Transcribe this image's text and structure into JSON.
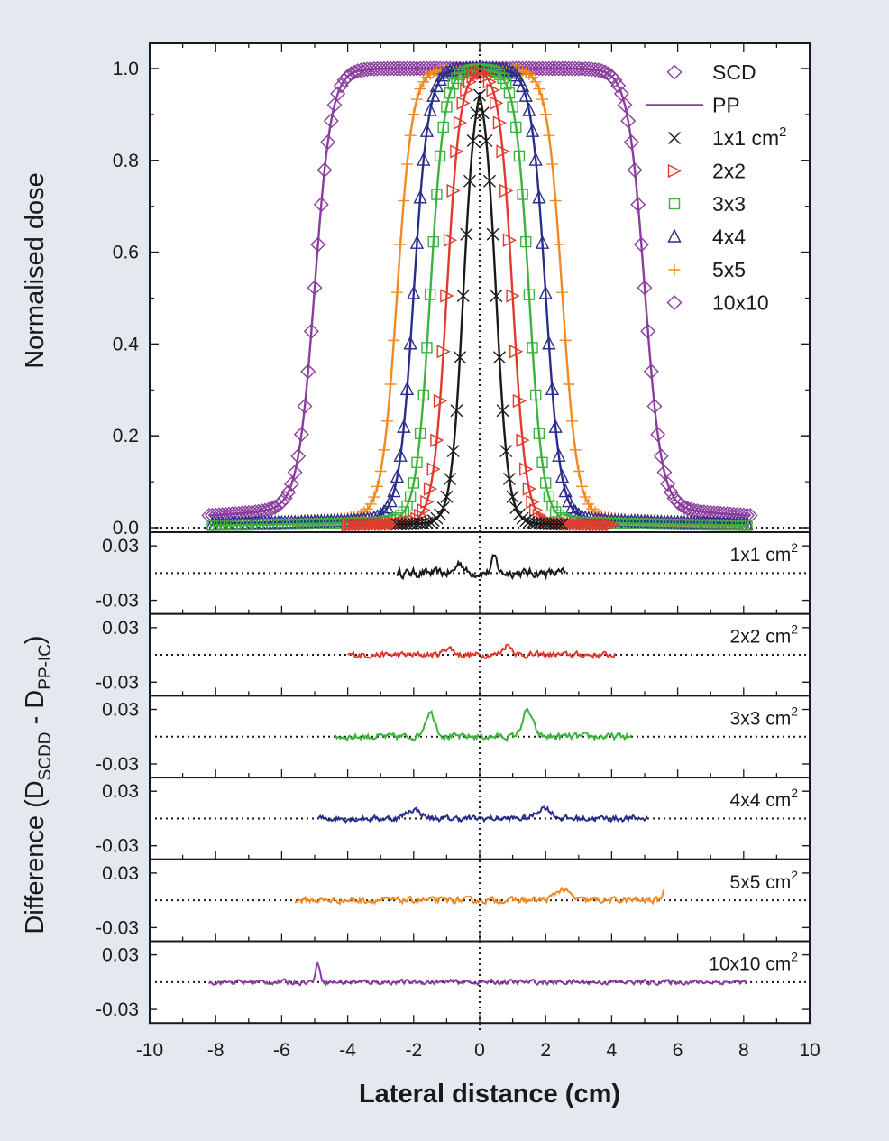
{
  "chart_data": [
    {
      "type": "line",
      "ylabel": "Normalised dose",
      "xlim": [
        -10,
        10
      ],
      "ylim": [
        0,
        1.02
      ],
      "xticks": [
        "-10",
        "-8",
        "-6",
        "-4",
        "-2",
        "0",
        "2",
        "4",
        "6",
        "8",
        "10"
      ],
      "yticks": [
        "0.0",
        "0.2",
        "0.4",
        "0.6",
        "0.8",
        "1.0"
      ],
      "legend_position": "top-right",
      "legend": [
        {
          "label": "SCD",
          "marker": "diamond",
          "color": "#8a3d9e"
        },
        {
          "label": "PP",
          "marker": "line",
          "color": "#8a3d9e"
        },
        {
          "label": "1x1 cm",
          "sup": "2",
          "marker": "x",
          "color": "#1a1a1a"
        },
        {
          "label": "2x2",
          "marker": "triangle-right",
          "color": "#e03a2f"
        },
        {
          "label": "3x3",
          "marker": "square",
          "color": "#3db23d"
        },
        {
          "label": "4x4",
          "marker": "triangle-up",
          "color": "#2b2d8c"
        },
        {
          "label": "5x5",
          "marker": "plus",
          "color": "#f08a24"
        },
        {
          "label": "10x10",
          "marker": "diamond",
          "color": "#8a3d9e"
        }
      ],
      "series": [
        {
          "field_cm": 1,
          "halfwidth_cm": 0.5,
          "penumbra_cm": 0.18,
          "tail": 0.01,
          "x_range": [
            -2.5,
            2.5
          ],
          "color": "#1a1a1a",
          "marker": "x"
        },
        {
          "field_cm": 2,
          "halfwidth_cm": 1.0,
          "penumbra_cm": 0.2,
          "tail": 0.01,
          "x_range": [
            -4.0,
            4.0
          ],
          "color": "#e03a2f",
          "marker": "triangle-right"
        },
        {
          "field_cm": 3,
          "halfwidth_cm": 1.5,
          "penumbra_cm": 0.21,
          "tail": 0.015,
          "x_range": [
            -8.1,
            8.1
          ],
          "color": "#3db23d",
          "marker": "square"
        },
        {
          "field_cm": 4,
          "halfwidth_cm": 2.0,
          "penumbra_cm": 0.22,
          "tail": 0.02,
          "x_range": [
            -8.1,
            8.1
          ],
          "color": "#2b2d8c",
          "marker": "triangle-up"
        },
        {
          "field_cm": 5,
          "halfwidth_cm": 2.5,
          "penumbra_cm": 0.23,
          "tail": 0.025,
          "x_range": [
            -5.6,
            8.1
          ],
          "color": "#f08a24",
          "marker": "plus"
        },
        {
          "field_cm": 10,
          "halfwidth_cm": 5.0,
          "penumbra_cm": 0.25,
          "tail": 0.045,
          "x_range": [
            -8.2,
            8.2
          ],
          "color": "#8a3d9e",
          "marker": "diamond"
        }
      ]
    },
    {
      "type": "line",
      "ylabel_main": "Difference (D",
      "ylabel_sub1": "SCDD",
      "ylabel_mid": " - D",
      "ylabel_sub2": "PP-IC",
      "ylabel_end": ")",
      "xlabel": "Lateral distance (cm)",
      "xlim": [
        -10,
        10
      ],
      "ylim": [
        -0.045,
        0.045
      ],
      "yticks": [
        "0.03",
        "-0.03"
      ],
      "panels": [
        {
          "label": "1x1 cm",
          "sup": "2",
          "color": "#1a1a1a",
          "x_range": [
            -2.5,
            2.6
          ],
          "noise": 0.0075,
          "bumps": [
            [
              -0.6,
              0.012,
              0.15
            ],
            [
              0.45,
              0.017,
              0.12
            ]
          ]
        },
        {
          "label": "2x2 cm",
          "sup": "2",
          "color": "#e03a2f",
          "x_range": [
            -4.0,
            4.1
          ],
          "noise": 0.005,
          "bumps": [
            [
              -0.95,
              0.008,
              0.2
            ],
            [
              0.85,
              0.011,
              0.2
            ]
          ]
        },
        {
          "label": "3x3 cm",
          "sup": "2",
          "color": "#3db23d",
          "x_range": [
            -4.4,
            4.6
          ],
          "noise": 0.0055,
          "bumps": [
            [
              -1.5,
              0.027,
              0.22
            ],
            [
              1.45,
              0.028,
              0.22
            ]
          ]
        },
        {
          "label": "4x4 cm",
          "sup": "2",
          "color": "#2b2d8c",
          "x_range": [
            -4.9,
            5.1
          ],
          "noise": 0.005,
          "bumps": [
            [
              -2.0,
              0.01,
              0.3
            ],
            [
              1.95,
              0.012,
              0.3
            ]
          ]
        },
        {
          "label": "5x5 cm",
          "sup": "2",
          "color": "#f08a24",
          "x_range": [
            -5.6,
            5.6
          ],
          "noise": 0.005,
          "bumps": [
            [
              2.5,
              0.012,
              0.3
            ],
            [
              5.6,
              0.01,
              0.1
            ]
          ]
        },
        {
          "label": "10x10 cm",
          "sup": "2",
          "color": "#8a3d9e",
          "x_range": [
            -8.2,
            8.1
          ],
          "noise": 0.004,
          "bumps": [
            [
              -4.9,
              0.02,
              0.1
            ]
          ]
        }
      ]
    }
  ]
}
